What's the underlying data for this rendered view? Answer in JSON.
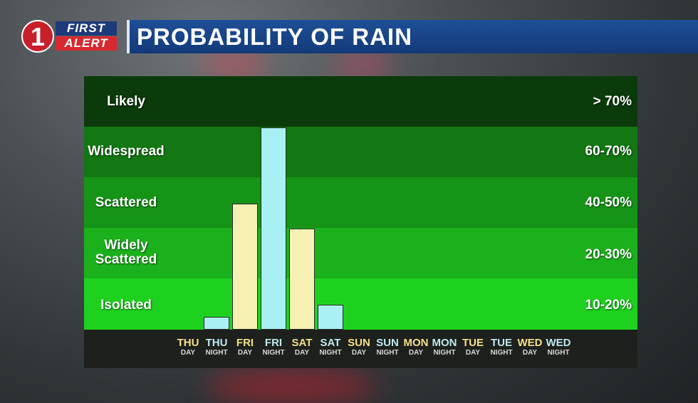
{
  "header": {
    "logo_one": "1",
    "logo_first": "FIRST",
    "logo_alert": "ALERT",
    "title": "PROBABILITY OF RAIN"
  },
  "colors": {
    "day_bar": "#f6f1b2",
    "night_bar": "#a8f0f3",
    "band_likely": "#0b3a0b",
    "band_widespread": "#137714",
    "band_scattered": "#169417",
    "band_widely_scattered": "#1bb11c",
    "band_isolated": "#1ed11f"
  },
  "chart_data": {
    "type": "bar",
    "categories": [
      {
        "day": "THU",
        "period": "DAY"
      },
      {
        "day": "THU",
        "period": "NIGHT"
      },
      {
        "day": "FRI",
        "period": "DAY"
      },
      {
        "day": "FRI",
        "period": "NIGHT"
      },
      {
        "day": "SAT",
        "period": "DAY"
      },
      {
        "day": "SAT",
        "period": "NIGHT"
      },
      {
        "day": "SUN",
        "period": "DAY"
      },
      {
        "day": "SUN",
        "period": "NIGHT"
      },
      {
        "day": "MON",
        "period": "DAY"
      },
      {
        "day": "MON",
        "period": "NIGHT"
      },
      {
        "day": "TUE",
        "period": "DAY"
      },
      {
        "day": "TUE",
        "period": "NIGHT"
      },
      {
        "day": "WED",
        "period": "DAY"
      },
      {
        "day": "WED",
        "period": "NIGHT"
      }
    ],
    "values": [
      0,
      0.25,
      2.5,
      4.0,
      2.0,
      0.5,
      0,
      0,
      0,
      0,
      0,
      0,
      0,
      0
    ],
    "levels": [
      {
        "label": "Likely",
        "range": "> 70%"
      },
      {
        "label": "Widespread",
        "range": "60-70%"
      },
      {
        "label": "Scattered",
        "range": "40-50%"
      },
      {
        "label": "Widely Scattered",
        "range": "20-30%"
      },
      {
        "label": "Isolated",
        "range": "10-20%"
      }
    ],
    "ylim": [
      0,
      5
    ]
  }
}
